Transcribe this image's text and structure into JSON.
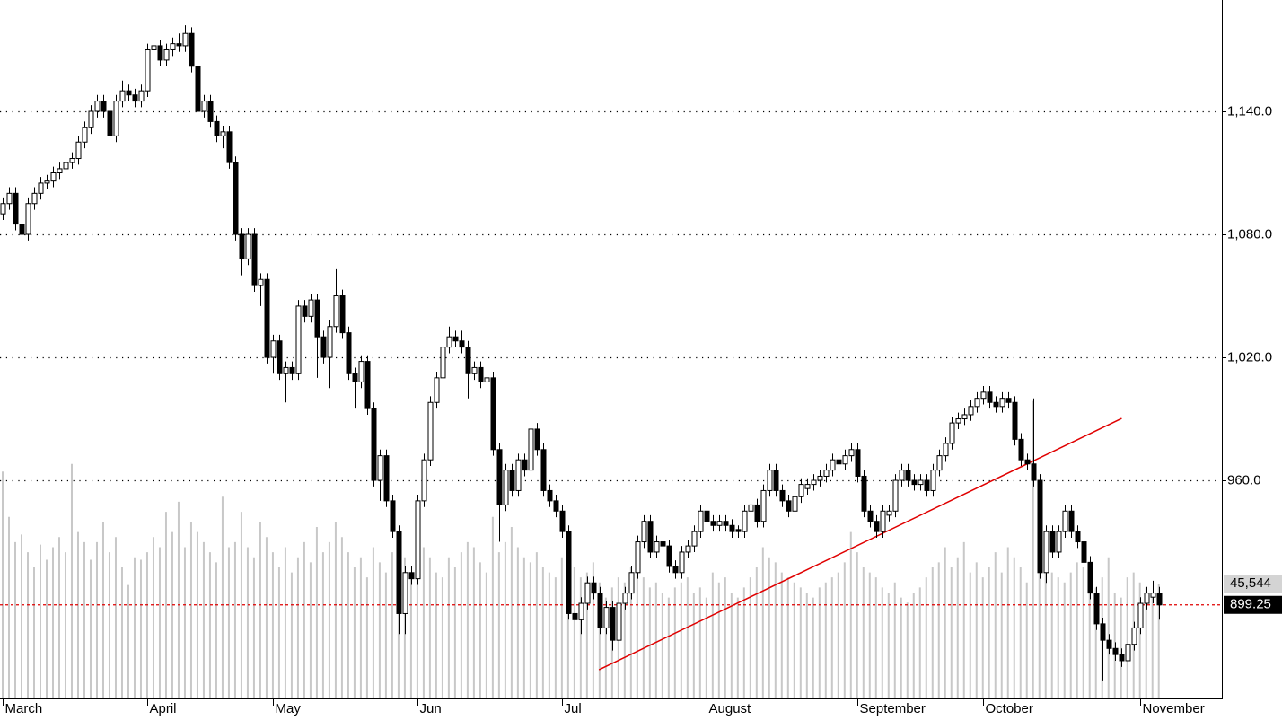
{
  "chart_data": {
    "type": "candlestick",
    "ylim": [
      853.6,
      1194.3
    ],
    "yticks": [
      {
        "value": 960,
        "label": "960.0"
      },
      {
        "value": 1020,
        "label": "1,020.0"
      },
      {
        "value": 1080,
        "label": "1,080.0"
      },
      {
        "value": 1140,
        "label": "1,140.0"
      }
    ],
    "y2lim": [
      0,
      277000
    ],
    "xlim": [
      -0.43,
      193.9
    ],
    "grid": true,
    "up_color": "#ffffff",
    "down_color": "#000000",
    "volume_color": "#c8c8c8",
    "xticks": [
      {
        "value": 0,
        "label": "March"
      },
      {
        "value": 23,
        "label": "April"
      },
      {
        "value": 43,
        "label": "May"
      },
      {
        "value": 66,
        "label": "Jun"
      },
      {
        "value": 89,
        "label": "Jul"
      },
      {
        "value": 112,
        "label": "August"
      },
      {
        "value": 136,
        "label": "September"
      },
      {
        "value": 156,
        "label": "October"
      },
      {
        "value": 181,
        "label": "November"
      }
    ],
    "candles": [
      [
        1090,
        1098,
        1087,
        1095
      ],
      [
        1095,
        1103,
        1092,
        1100
      ],
      [
        1100,
        1103,
        1082,
        1085
      ],
      [
        1085,
        1088,
        1075,
        1080
      ],
      [
        1080,
        1098,
        1077,
        1095
      ],
      [
        1095,
        1103,
        1092,
        1100
      ],
      [
        1100,
        1108,
        1097,
        1105
      ],
      [
        1105,
        1109,
        1102,
        1106
      ],
      [
        1106,
        1113,
        1103,
        1110
      ],
      [
        1110,
        1115,
        1107,
        1112
      ],
      [
        1112,
        1118,
        1109,
        1115
      ],
      [
        1115,
        1120,
        1112,
        1117
      ],
      [
        1117,
        1128,
        1114,
        1125
      ],
      [
        1125,
        1135,
        1122,
        1132
      ],
      [
        1132,
        1143,
        1129,
        1140
      ],
      [
        1140,
        1148,
        1137,
        1145
      ],
      [
        1145,
        1148,
        1137,
        1140
      ],
      [
        1140,
        1143,
        1115,
        1128
      ],
      [
        1128,
        1148,
        1125,
        1145
      ],
      [
        1145,
        1155,
        1142,
        1150
      ],
      [
        1150,
        1153,
        1145,
        1148
      ],
      [
        1148,
        1151,
        1142,
        1145
      ],
      [
        1145,
        1153,
        1142,
        1150
      ],
      [
        1150,
        1173,
        1147,
        1170
      ],
      [
        1170,
        1175,
        1167,
        1172
      ],
      [
        1172,
        1175,
        1162,
        1165
      ],
      [
        1165,
        1173,
        1162,
        1170
      ],
      [
        1170,
        1176,
        1167,
        1173
      ],
      [
        1173,
        1178,
        1169,
        1172
      ],
      [
        1172,
        1182,
        1169,
        1178
      ],
      [
        1178,
        1181,
        1159,
        1162
      ],
      [
        1162,
        1165,
        1130,
        1140
      ],
      [
        1140,
        1148,
        1137,
        1145
      ],
      [
        1145,
        1148,
        1132,
        1135
      ],
      [
        1135,
        1138,
        1125,
        1128
      ],
      [
        1128,
        1133,
        1122,
        1130
      ],
      [
        1130,
        1133,
        1112,
        1115
      ],
      [
        1115,
        1118,
        1077,
        1080
      ],
      [
        1080,
        1083,
        1060,
        1068
      ],
      [
        1068,
        1083,
        1065,
        1080
      ],
      [
        1080,
        1083,
        1052,
        1055
      ],
      [
        1055,
        1061,
        1045,
        1058
      ],
      [
        1058,
        1061,
        1017,
        1020
      ],
      [
        1020,
        1031,
        1012,
        1028
      ],
      [
        1028,
        1031,
        1009,
        1012
      ],
      [
        1012,
        1018,
        998,
        1015
      ],
      [
        1015,
        1018,
        1009,
        1012
      ],
      [
        1012,
        1048,
        1009,
        1045
      ],
      [
        1045,
        1048,
        1037,
        1040
      ],
      [
        1040,
        1051,
        1037,
        1048
      ],
      [
        1048,
        1051,
        1010,
        1030
      ],
      [
        1030,
        1033,
        1017,
        1020
      ],
      [
        1020,
        1038,
        1005,
        1035
      ],
      [
        1035,
        1063,
        1032,
        1050
      ],
      [
        1050,
        1053,
        1029,
        1032
      ],
      [
        1032,
        1035,
        1009,
        1012
      ],
      [
        1012,
        1015,
        995,
        1008
      ],
      [
        1008,
        1021,
        1005,
        1018
      ],
      [
        1018,
        1021,
        992,
        995
      ],
      [
        995,
        998,
        957,
        960
      ],
      [
        960,
        975,
        950,
        972
      ],
      [
        972,
        975,
        947,
        950
      ],
      [
        950,
        953,
        932,
        935
      ],
      [
        935,
        938,
        885,
        895
      ],
      [
        895,
        918,
        885,
        915
      ],
      [
        915,
        918,
        909,
        912
      ],
      [
        912,
        953,
        909,
        950
      ],
      [
        950,
        973,
        947,
        970
      ],
      [
        970,
        1001,
        967,
        998
      ],
      [
        998,
        1013,
        995,
        1010
      ],
      [
        1010,
        1028,
        1007,
        1025
      ],
      [
        1025,
        1035,
        1022,
        1030
      ],
      [
        1030,
        1033,
        1025,
        1028
      ],
      [
        1028,
        1033,
        1022,
        1025
      ],
      [
        1025,
        1028,
        1000,
        1012
      ],
      [
        1012,
        1018,
        1009,
        1015
      ],
      [
        1015,
        1018,
        1005,
        1008
      ],
      [
        1008,
        1013,
        1005,
        1010
      ],
      [
        1010,
        1013,
        972,
        975
      ],
      [
        975,
        978,
        930,
        948
      ],
      [
        948,
        968,
        945,
        965
      ],
      [
        965,
        968,
        952,
        955
      ],
      [
        955,
        973,
        952,
        970
      ],
      [
        970,
        973,
        962,
        965
      ],
      [
        965,
        988,
        962,
        985
      ],
      [
        985,
        988,
        972,
        975
      ],
      [
        975,
        978,
        952,
        955
      ],
      [
        955,
        958,
        947,
        950
      ],
      [
        950,
        953,
        942,
        945
      ],
      [
        945,
        948,
        932,
        935
      ],
      [
        935,
        938,
        892,
        895
      ],
      [
        895,
        898,
        880,
        892
      ],
      [
        892,
        903,
        885,
        900
      ],
      [
        900,
        913,
        897,
        910
      ],
      [
        910,
        913,
        902,
        905
      ],
      [
        905,
        908,
        885,
        888
      ],
      [
        888,
        901,
        885,
        898
      ],
      [
        898,
        901,
        877,
        882
      ],
      [
        882,
        903,
        879,
        900
      ],
      [
        900,
        908,
        897,
        905
      ],
      [
        905,
        918,
        902,
        915
      ],
      [
        915,
        933,
        912,
        930
      ],
      [
        930,
        943,
        927,
        940
      ],
      [
        940,
        943,
        922,
        925
      ],
      [
        925,
        933,
        922,
        930
      ],
      [
        930,
        933,
        925,
        928
      ],
      [
        928,
        931,
        915,
        918
      ],
      [
        918,
        921,
        912,
        915
      ],
      [
        915,
        928,
        912,
        925
      ],
      [
        925,
        931,
        922,
        928
      ],
      [
        928,
        938,
        925,
        935
      ],
      [
        935,
        948,
        932,
        945
      ],
      [
        945,
        948,
        937,
        940
      ],
      [
        940,
        943,
        935,
        938
      ],
      [
        938,
        943,
        935,
        940
      ],
      [
        940,
        943,
        935,
        938
      ],
      [
        938,
        941,
        932,
        935
      ],
      [
        936,
        938,
        932,
        935
      ],
      [
        935,
        948,
        932,
        945
      ],
      [
        945,
        951,
        942,
        948
      ],
      [
        948,
        951,
        937,
        940
      ],
      [
        940,
        958,
        937,
        955
      ],
      [
        955,
        968,
        952,
        965
      ],
      [
        965,
        968,
        952,
        955
      ],
      [
        955,
        958,
        947,
        950
      ],
      [
        950,
        953,
        942,
        945
      ],
      [
        945,
        955,
        942,
        952
      ],
      [
        952,
        961,
        949,
        958
      ],
      [
        956,
        961,
        953,
        958
      ],
      [
        958,
        963,
        955,
        960
      ],
      [
        960,
        965,
        957,
        962
      ],
      [
        962,
        968,
        959,
        965
      ],
      [
        965,
        973,
        962,
        970
      ],
      [
        970,
        973,
        965,
        968
      ],
      [
        968,
        975,
        965,
        972
      ],
      [
        972,
        978,
        969,
        975
      ],
      [
        975,
        978,
        959,
        962
      ],
      [
        962,
        965,
        942,
        945
      ],
      [
        945,
        948,
        937,
        940
      ],
      [
        940,
        943,
        932,
        935
      ],
      [
        935,
        948,
        932,
        945
      ],
      [
        943,
        948,
        940,
        945
      ],
      [
        945,
        963,
        942,
        960
      ],
      [
        960,
        968,
        957,
        965
      ],
      [
        965,
        968,
        957,
        960
      ],
      [
        960,
        963,
        955,
        958
      ],
      [
        958,
        963,
        955,
        960
      ],
      [
        960,
        963,
        952,
        955
      ],
      [
        955,
        968,
        952,
        965
      ],
      [
        965,
        975,
        962,
        972
      ],
      [
        972,
        981,
        969,
        978
      ],
      [
        978,
        991,
        975,
        988
      ],
      [
        988,
        993,
        985,
        990
      ],
      [
        990,
        995,
        987,
        992
      ],
      [
        992,
        999,
        989,
        996
      ],
      [
        996,
        1003,
        993,
        1000
      ],
      [
        1000,
        1006,
        997,
        1003
      ],
      [
        1003,
        1006,
        995,
        998
      ],
      [
        998,
        1001,
        993,
        996
      ],
      [
        996,
        1003,
        993,
        1000
      ],
      [
        1000,
        1003,
        995,
        998
      ],
      [
        998,
        1001,
        977,
        980
      ],
      [
        980,
        983,
        967,
        970
      ],
      [
        970,
        973,
        965,
        968
      ],
      [
        968,
        1000,
        957,
        960
      ],
      [
        960,
        963,
        912,
        915
      ],
      [
        915,
        938,
        910,
        935
      ],
      [
        935,
        938,
        922,
        925
      ],
      [
        925,
        938,
        922,
        935
      ],
      [
        935,
        948,
        932,
        945
      ],
      [
        945,
        948,
        932,
        935
      ],
      [
        935,
        938,
        927,
        930
      ],
      [
        930,
        933,
        917,
        920
      ],
      [
        920,
        923,
        902,
        905
      ],
      [
        905,
        908,
        887,
        890
      ],
      [
        890,
        893,
        862,
        882
      ],
      [
        882,
        885,
        875,
        878
      ],
      [
        878,
        881,
        872,
        875
      ],
      [
        875,
        878,
        869,
        872
      ],
      [
        872,
        883,
        869,
        880
      ],
      [
        880,
        891,
        877,
        888
      ],
      [
        888,
        903,
        885,
        900
      ],
      [
        900,
        908,
        897,
        905
      ],
      [
        903,
        911,
        900,
        905
      ],
      [
        905,
        908,
        892,
        899.25
      ]
    ],
    "volume": [
      90000,
      72000,
      62000,
      65000,
      58000,
      52000,
      61000,
      55000,
      60000,
      64000,
      58000,
      93000,
      66000,
      62000,
      55000,
      62000,
      70000,
      58000,
      64000,
      52000,
      45000,
      56000,
      55000,
      58000,
      64000,
      60000,
      74000,
      66000,
      78000,
      60000,
      70000,
      66000,
      62000,
      58000,
      54000,
      80000,
      60000,
      62000,
      74000,
      60000,
      56000,
      70000,
      64000,
      58000,
      52000,
      60000,
      50000,
      56000,
      62000,
      54000,
      68000,
      58000,
      62000,
      70000,
      64000,
      58000,
      52000,
      56000,
      48000,
      60000,
      54000,
      50000,
      58000,
      62000,
      56000,
      50000,
      54000,
      60000,
      56000,
      50000,
      48000,
      56000,
      52000,
      58000,
      62000,
      60000,
      54000,
      50000,
      72000,
      58000,
      62000,
      68000,
      60000,
      56000,
      54000,
      58000,
      52000,
      50000,
      48000,
      56000,
      62000,
      52000,
      48000,
      50000,
      54000,
      46000,
      40000,
      44000,
      48000,
      46000,
      52000,
      50000,
      48000,
      44000,
      46000,
      42000,
      40000,
      44000,
      46000,
      48000,
      42000,
      44000,
      40000,
      50000,
      46000,
      48000,
      42000,
      40000,
      44000,
      48000,
      52000,
      60000,
      56000,
      54000,
      50000,
      48000,
      46000,
      44000,
      42000,
      40000,
      44000,
      46000,
      48000,
      50000,
      54000,
      66000,
      58000,
      52000,
      50000,
      48000,
      44000,
      42000,
      46000,
      40000,
      38000,
      42000,
      44000,
      48000,
      52000,
      54000,
      60000,
      52000,
      56000,
      62000,
      50000,
      54000,
      48000,
      52000,
      58000,
      50000,
      60000,
      56000,
      52000,
      46000,
      118000,
      60000,
      52000,
      50000,
      48000,
      46000,
      50000,
      54000,
      52000,
      46000,
      44000,
      48000,
      56000,
      42000,
      40000,
      48000,
      50000,
      46000,
      44000,
      42000,
      45544
    ],
    "last_volume_label": "45,544",
    "trendline": {
      "x": [
        94.9,
        178.1
      ],
      "y": [
        867.6,
        990.2
      ],
      "color": "#e00000"
    },
    "last_price_line_color": "#e00000"
  }
}
